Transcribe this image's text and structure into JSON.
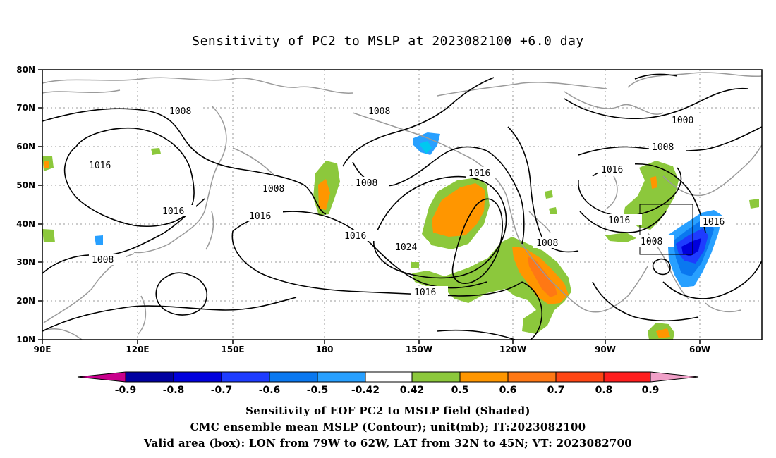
{
  "title": "Sensitivity of PC2 to MSLP at 2023082100 +6.0 day",
  "captions": [
    "Sensitivity of EOF PC2 to MSLP field (Shaded)",
    "CMC ensemble mean MSLP (Contour); unit(mb); IT:2023082100",
    "Valid area (box): LON from 79W to 62W, LAT from 32N to 45N; VT: 2023082700"
  ],
  "axes": {
    "x_ticks": [
      "90E",
      "120E",
      "150E",
      "180",
      "150W",
      "120W",
      "90W",
      "60W"
    ],
    "y_ticks": [
      "80N",
      "70N",
      "60N",
      "50N",
      "40N",
      "30N",
      "20N",
      "10N"
    ]
  },
  "contour_labels": [
    "1008",
    "1008",
    "1000",
    "1008",
    "1016",
    "1008",
    "1016",
    "1016",
    "1016",
    "1016",
    "1008",
    "1016",
    "1024",
    "1008",
    "1008",
    "1016",
    "1008"
  ],
  "colorbar": {
    "labels": [
      "-0.9",
      "-0.8",
      "-0.7",
      "-0.6",
      "-0.5",
      "-0.42",
      "0.42",
      "0.5",
      "0.6",
      "0.7",
      "0.8",
      "0.9"
    ],
    "colors": [
      "#c8008c",
      "#0000a0",
      "#0000dc",
      "#1e3cff",
      "#0a78f0",
      "#28a0ff",
      "#00c8f0",
      "#ffffff",
      "#8cc83c",
      "#ff9600",
      "#ff7814",
      "#ff4614",
      "#ff1e1e",
      "#f0a0c8"
    ]
  },
  "valid_box": {
    "lon_min": "79W",
    "lon_max": "62W",
    "lat_min": "32N",
    "lat_max": "45N"
  }
}
